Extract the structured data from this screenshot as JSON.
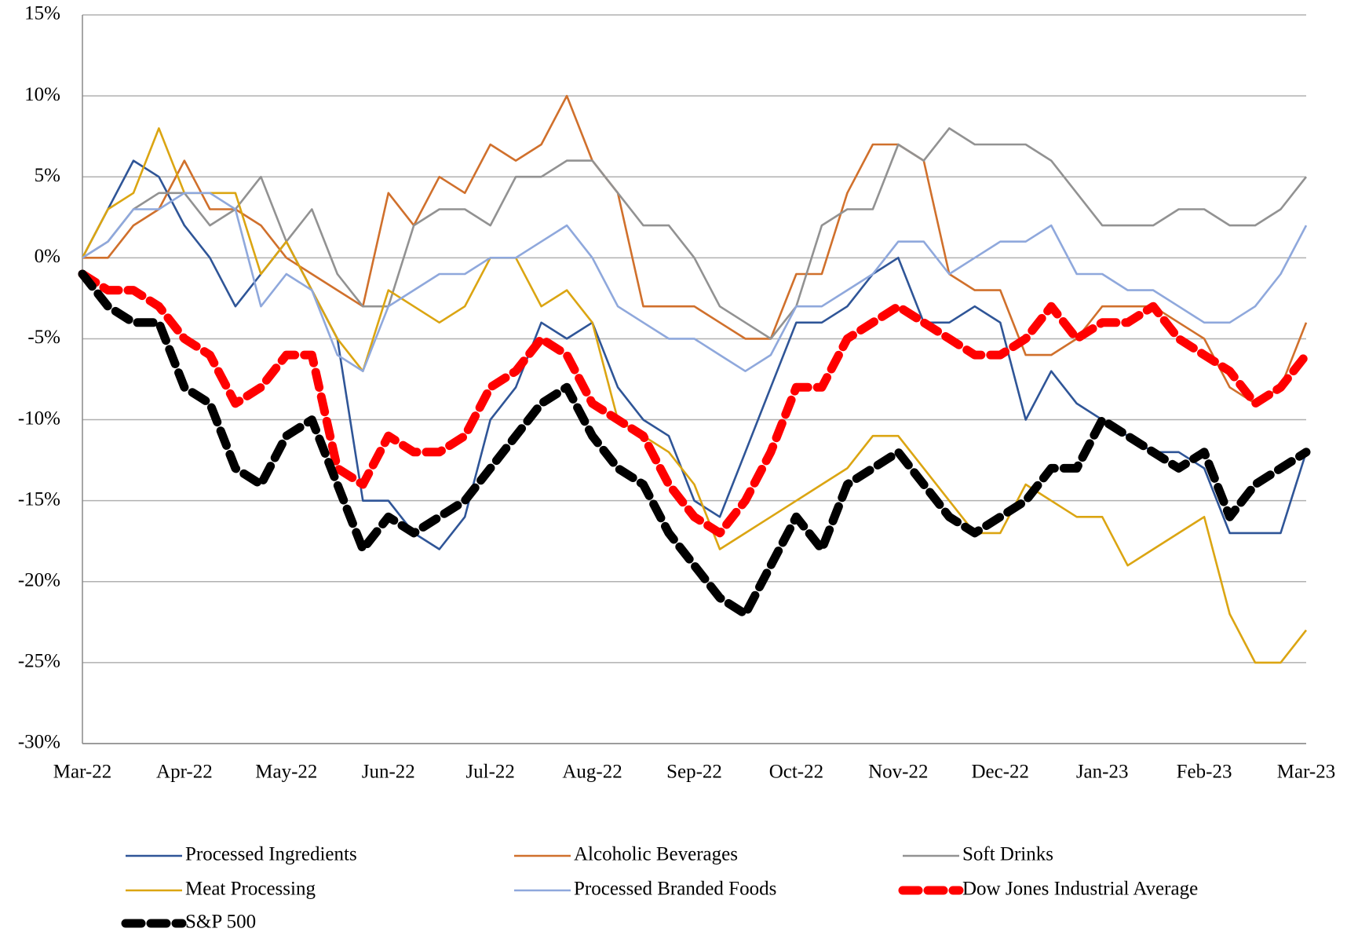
{
  "chart_data": {
    "type": "line",
    "categories": [
      "Mar-22",
      null,
      null,
      null,
      "Apr-22",
      null,
      null,
      null,
      "May-22",
      null,
      null,
      null,
      "Jun-22",
      null,
      null,
      null,
      "Jul-22",
      null,
      null,
      null,
      "Aug-22",
      null,
      null,
      null,
      "Sep-22",
      null,
      null,
      null,
      "Oct-22",
      null,
      null,
      null,
      "Nov-22",
      null,
      null,
      null,
      "Dec-22",
      null,
      null,
      null,
      "Jan-23",
      null,
      null,
      null,
      "Feb-23",
      null,
      null,
      null,
      "Mar-23"
    ],
    "ylim": [
      -30,
      15
    ],
    "yticks": [
      {
        "value": -30,
        "label": "-30%"
      },
      {
        "value": -25,
        "label": "-25%"
      },
      {
        "value": -20,
        "label": "-20%"
      },
      {
        "value": -15,
        "label": "-15%"
      },
      {
        "value": -10,
        "label": "-10%"
      },
      {
        "value": -5,
        "label": "-5%"
      },
      {
        "value": 0,
        "label": "0%"
      },
      {
        "value": 5,
        "label": "5%"
      },
      {
        "value": 10,
        "label": "10%"
      },
      {
        "value": 15,
        "label": "15%"
      }
    ],
    "grid": true,
    "legend": "bottom",
    "series": [
      {
        "name": "Processed Ingredients",
        "color": "#2f5597",
        "line_style": "solid",
        "values": [
          0,
          3,
          6,
          5,
          2,
          0,
          -3,
          -1,
          1,
          -2,
          -5,
          -15,
          -15,
          -17,
          -18,
          -16,
          -10,
          -8,
          -4,
          -5,
          -4,
          -8,
          -10,
          -11,
          -15,
          -16,
          -12,
          -8,
          -4,
          -4,
          -3,
          -1,
          0,
          -4,
          -4,
          -3,
          -4,
          -10,
          -7,
          -9,
          -10,
          -11,
          -12,
          -12,
          -13,
          -17,
          -17,
          -17,
          -12
        ]
      },
      {
        "name": "Alcoholic Beverages",
        "color": "#d0702c",
        "line_style": "solid",
        "values": [
          0,
          0,
          2,
          3,
          6,
          3,
          3,
          2,
          0,
          -1,
          -2,
          -3,
          4,
          2,
          5,
          4,
          7,
          6,
          7,
          10,
          6,
          4,
          -3,
          -3,
          -3,
          -4,
          -5,
          -5,
          -1,
          -1,
          4,
          7,
          7,
          6,
          -1,
          -2,
          -2,
          -6,
          -6,
          -5,
          -3,
          -3,
          -3,
          -4,
          -5,
          -8,
          -9,
          -8,
          -4
        ]
      },
      {
        "name": "Soft Drinks",
        "color": "#929292",
        "line_style": "solid",
        "values": [
          0,
          1,
          3,
          4,
          4,
          2,
          3,
          5,
          1,
          3,
          -1,
          -3,
          -3,
          2,
          3,
          3,
          2,
          5,
          5,
          6,
          6,
          4,
          2,
          2,
          0,
          -3,
          -4,
          -5,
          -3,
          2,
          3,
          3,
          7,
          6,
          8,
          7,
          7,
          7,
          6,
          4,
          2,
          2,
          2,
          3,
          3,
          2,
          2,
          3,
          5
        ]
      },
      {
        "name": "Meat Processing",
        "color": "#dba512",
        "line_style": "solid",
        "values": [
          0,
          3,
          4,
          8,
          4,
          4,
          4,
          -1,
          1,
          -2,
          -5,
          -7,
          -2,
          -3,
          -4,
          -3,
          0,
          0,
          -3,
          -2,
          -4,
          -10,
          -11,
          -12,
          -14,
          -18,
          -17,
          -16,
          -15,
          -14,
          -13,
          -11,
          -11,
          -13,
          -15,
          -17,
          -17,
          -14,
          -15,
          -16,
          -16,
          -19,
          -18,
          -17,
          -16,
          -22,
          -25,
          -25,
          -23
        ]
      },
      {
        "name": "Processed Branded Foods",
        "color": "#8fa8dc",
        "line_style": "solid",
        "values": [
          0,
          1,
          3,
          3,
          4,
          4,
          3,
          -3,
          -1,
          -2,
          -6,
          -7,
          -3,
          -2,
          -1,
          -1,
          0,
          0,
          1,
          2,
          0,
          -3,
          -4,
          -5,
          -5,
          -6,
          -7,
          -6,
          -3,
          -3,
          -2,
          -1,
          1,
          1,
          -1,
          0,
          1,
          1,
          2,
          -1,
          -1,
          -2,
          -2,
          -3,
          -4,
          -4,
          -3,
          -1,
          2
        ]
      },
      {
        "name": "Dow Jones Industrial Average",
        "color": "#ff0000",
        "line_style": "dashed",
        "values": [
          -1,
          -2,
          -2,
          -3,
          -5,
          -6,
          -9,
          -8,
          -6,
          -6,
          -13,
          -14,
          -11,
          -12,
          -12,
          -11,
          -8,
          -7,
          -5,
          -6,
          -9,
          -10,
          -11,
          -14,
          -16,
          -17,
          -15,
          -12,
          -8,
          -8,
          -5,
          -4,
          -3,
          -4,
          -5,
          -6,
          -6,
          -5,
          -3,
          -5,
          -4,
          -4,
          -3,
          -5,
          -6,
          -7,
          -9,
          -8,
          -6
        ]
      },
      {
        "name": "S&P 500",
        "color": "#000000",
        "line_style": "dashed",
        "values": [
          -1,
          -3,
          -4,
          -4,
          -8,
          -9,
          -13,
          -14,
          -11,
          -10,
          -14,
          -18,
          -16,
          -17,
          -16,
          -15,
          -13,
          -11,
          -9,
          -8,
          -11,
          -13,
          -14,
          -17,
          -19,
          -21,
          -22,
          -19,
          -16,
          -18,
          -14,
          -13,
          -12,
          -14,
          -16,
          -17,
          -16,
          -15,
          -13,
          -13,
          -10,
          -11,
          -12,
          -13,
          -12,
          -16,
          -14,
          -13,
          -12
        ]
      }
    ]
  }
}
